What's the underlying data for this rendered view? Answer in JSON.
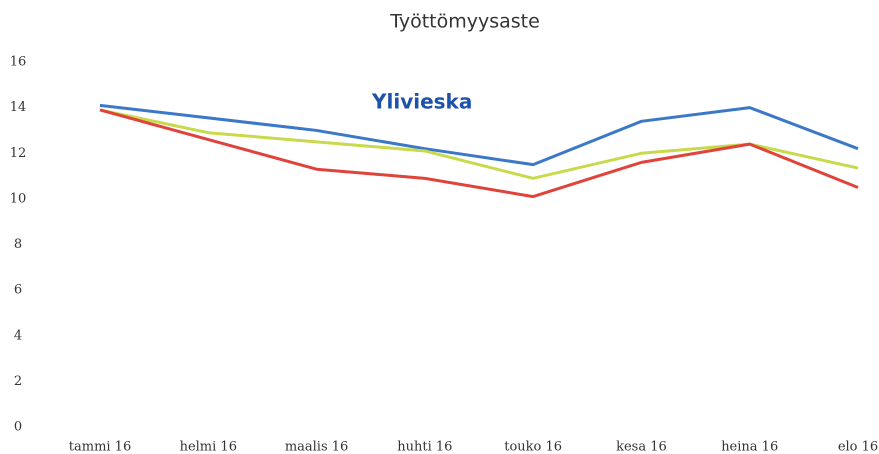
{
  "chart_data": {
    "type": "line",
    "title": "Työttömyysaste",
    "annotation": "Ylivieska",
    "categories": [
      "tammi 16",
      "helmi 16",
      "maalis 16",
      "huhti 16",
      "touko 16",
      "kesa 16",
      "heina 16",
      "elo 16"
    ],
    "series": [
      {
        "color": "#3b78c8",
        "values": [
          14.1,
          13.55,
          13.0,
          12.2,
          11.5,
          13.4,
          14.0,
          12.2
        ]
      },
      {
        "color": "#c8da4c",
        "values": [
          13.9,
          12.9,
          12.5,
          12.1,
          10.9,
          12.0,
          12.4,
          11.35
        ]
      },
      {
        "color": "#e0433c",
        "values": [
          13.9,
          12.6,
          11.3,
          10.9,
          10.1,
          11.6,
          12.4,
          10.5
        ]
      }
    ],
    "ylim": [
      0,
      16
    ],
    "yticks": [
      0,
      2,
      4,
      6,
      8,
      10,
      12,
      14,
      16
    ],
    "grid": false
  }
}
